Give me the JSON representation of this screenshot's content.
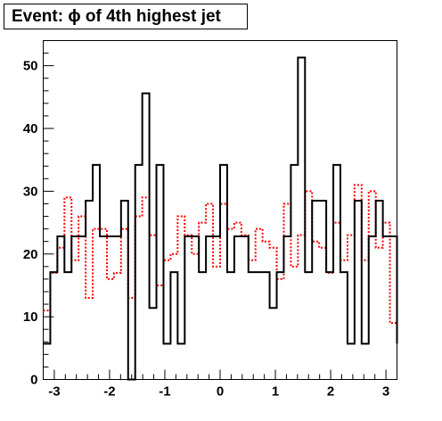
{
  "chart_data": {
    "type": "histogram-step",
    "title": "Event: ϕ of 4th highest jet",
    "xlabel": "",
    "ylabel": "",
    "xlim": [
      -3.2,
      3.2
    ],
    "ylim": [
      0,
      54
    ],
    "x_major_ticks": [
      -3,
      -2,
      -1,
      0,
      1,
      2,
      3
    ],
    "x_tick_labels": [
      "-3",
      "-2",
      "-1",
      "0",
      "1",
      "2",
      "3"
    ],
    "y_major_ticks": [
      0,
      10,
      20,
      30,
      40,
      50
    ],
    "y_tick_labels": [
      "0",
      "10",
      "20",
      "30",
      "40",
      "50"
    ],
    "grid": false,
    "legend": "none",
    "bin_edges_start": -3.2,
    "bin_width": 0.128,
    "series": [
      {
        "style": "solid",
        "color": "#000000",
        "values": [
          5.7,
          17.1,
          22.8,
          17.1,
          22.8,
          22.8,
          28.5,
          34.2,
          22.8,
          22.8,
          22.8,
          28.5,
          0,
          34.2,
          45.6,
          11.4,
          34.2,
          5.7,
          17.1,
          5.7,
          22.8,
          22.8,
          17.1,
          22.8,
          22.8,
          34.2,
          17.1,
          22.8,
          22.8,
          17.1,
          17.1,
          17.1,
          11.4,
          17.1,
          22.8,
          34.2,
          51.3,
          17.1,
          28.5,
          28.5,
          17.1,
          34.2,
          17.1,
          5.7,
          28.5,
          5.7,
          22.8,
          28.5,
          22.8,
          22.8,
          5.7
        ]
      },
      {
        "style": "dotted",
        "color": "#ff0000",
        "values": [
          11,
          17,
          21,
          29,
          19,
          26,
          13,
          24,
          24,
          16,
          17,
          24,
          13,
          26,
          29,
          23,
          15,
          19,
          20,
          26,
          23,
          20,
          25,
          28,
          18,
          28,
          24,
          25,
          23,
          19,
          24,
          22,
          21,
          16,
          28,
          18,
          23,
          30,
          22,
          21,
          17,
          25,
          19,
          23,
          31,
          19,
          30,
          21,
          25,
          9,
          9
        ]
      }
    ]
  }
}
